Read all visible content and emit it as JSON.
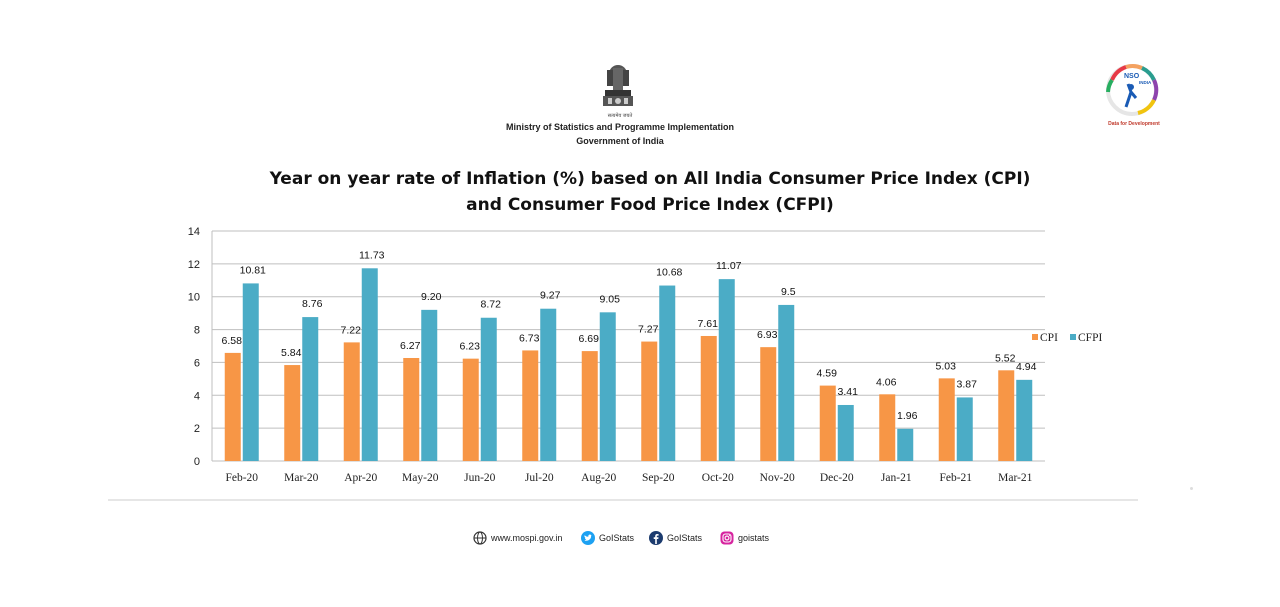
{
  "header": {
    "ministry": "Ministry of Statistics and Programme Implementation",
    "government": "Government of India",
    "motto": "सत्यमेव जयते",
    "nso_logo_text": "NSO",
    "nso_logo_country": "INDIA",
    "nso_tagline": "Data for Development"
  },
  "chart_data": {
    "type": "bar",
    "title_line1": "Year on year rate of Inflation (%) based on All India Consumer Price Index (CPI)",
    "title_line2": "and Consumer Food Price Index (CFPI)",
    "categories": [
      "Feb-20",
      "Mar-20",
      "Apr-20",
      "May-20",
      "Jun-20",
      "Jul-20",
      "Aug-20",
      "Sep-20",
      "Oct-20",
      "Nov-20",
      "Dec-20",
      "Jan-21",
      "Feb-21",
      "Mar-21"
    ],
    "series": [
      {
        "name": "CPI",
        "color": "#f79646",
        "values": [
          6.58,
          5.84,
          7.22,
          6.27,
          6.23,
          6.73,
          6.69,
          7.27,
          7.61,
          6.93,
          4.59,
          4.06,
          5.03,
          5.52
        ],
        "labels": [
          "6.58",
          "5.84",
          "7.22",
          "6.27",
          "6.23",
          "6.73",
          "6.69",
          "7.27",
          "7.61",
          "6.93",
          "4.59",
          "4.06",
          "5.03",
          "5.52"
        ]
      },
      {
        "name": "CFPI",
        "color": "#4bacc6",
        "values": [
          10.81,
          8.76,
          11.73,
          9.2,
          8.72,
          9.27,
          9.05,
          10.68,
          11.07,
          9.5,
          3.41,
          1.96,
          3.87,
          4.94
        ],
        "labels": [
          "10.81",
          "8.76",
          "11.73",
          "9.20",
          "8.72",
          "9.27",
          "9.05",
          "10.68",
          "11.07",
          "9.5",
          "3.41",
          "1.96",
          "3.87",
          "4.94"
        ]
      }
    ],
    "yticks": [
      "0",
      "2",
      "4",
      "6",
      "8",
      "10",
      "12",
      "14"
    ],
    "ylim": [
      0,
      14
    ],
    "grid": true,
    "legend": "right"
  },
  "footer": {
    "website": "www.mospi.gov.in",
    "twitter": "GoIStats",
    "facebook": "GoIStats",
    "instagram": "goistats"
  },
  "colors": {
    "cpi": "#f79646",
    "cfpi": "#4bacc6",
    "grid": "#bfbfbf"
  }
}
